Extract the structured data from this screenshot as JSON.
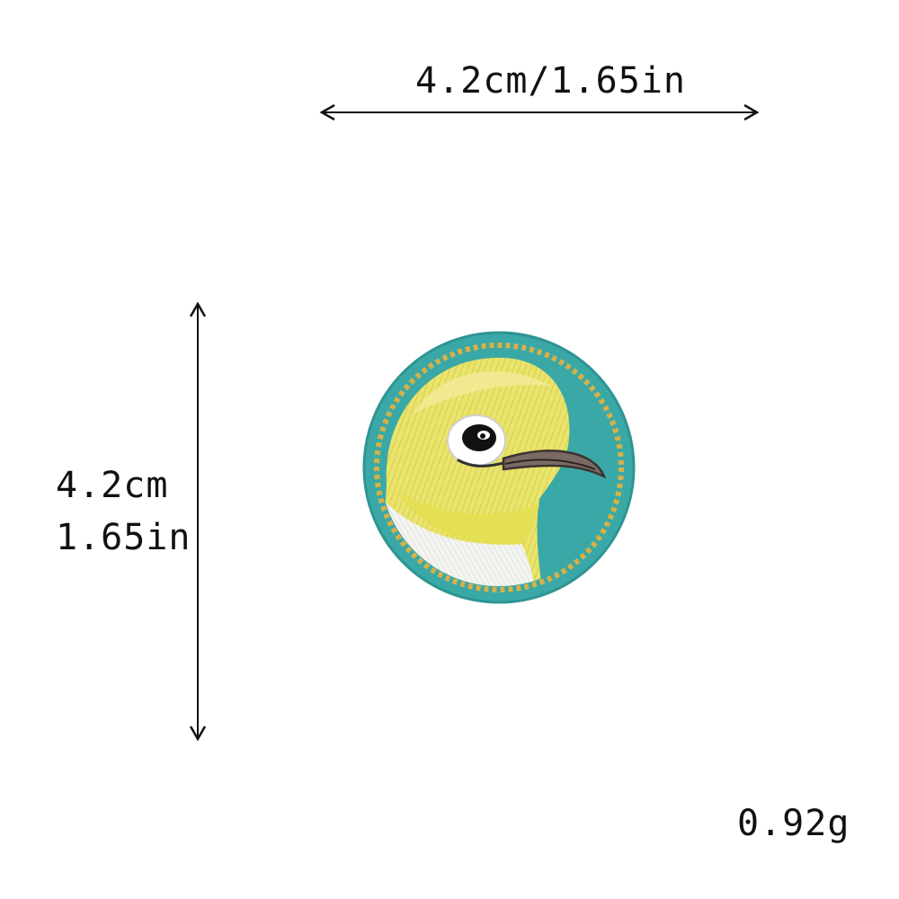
{
  "dimensions": {
    "width_label": "4.2cm/1.65in",
    "height_label_cm": "4.2cm",
    "height_label_in": "1.65in"
  },
  "weight_label": "0.92g",
  "product": {
    "type": "embroidered-patch",
    "subject": "bird-head-icon",
    "colors": {
      "background": "#3aa8a6",
      "border_stitch": "#d6b24a",
      "head": "#e8e36a",
      "throat": "#f3f3f3",
      "beak": "#7a6a63",
      "eye_ring": "#ffffff",
      "eye": "#111111"
    }
  },
  "colors": {
    "text": "#111111",
    "arrow": "#111111",
    "page_background": "#ffffff"
  }
}
